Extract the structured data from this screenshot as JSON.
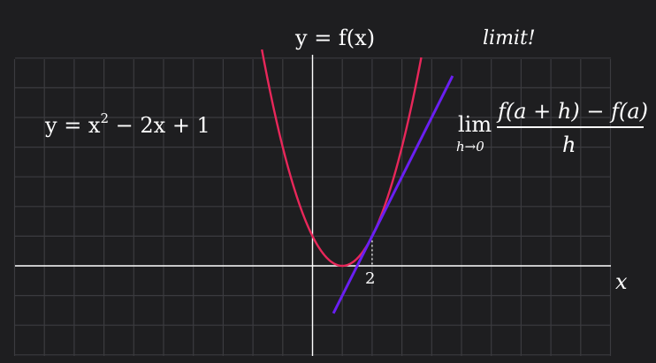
{
  "diagram": {
    "title": "y = f(x)",
    "caption": "limit!",
    "equation": {
      "lhs": "y = x",
      "exponent": "2",
      "rhs": " − 2x + 1"
    },
    "x_axis_label": "x",
    "tick_label": "2",
    "derivative": {
      "lim": "lim",
      "subscript": "h→0",
      "numerator": "f(a + h) − f(a)",
      "denominator": "h"
    }
  },
  "chart_data": {
    "type": "line",
    "xlim": [
      -10,
      10
    ],
    "ylim": [
      -3,
      7
    ],
    "grid": true,
    "series": [
      {
        "name": "parabola",
        "expression": "y = x^2 - 2x + 1",
        "color": "#e8275a",
        "x_range": [
          -1.7,
          3.65
        ]
      },
      {
        "name": "tangent",
        "expression": "y = 2x - 3",
        "color": "#6a1ff2",
        "x_range": [
          0.7,
          4.7
        ]
      }
    ],
    "point_of_tangency": {
      "x": 2,
      "y": 1
    },
    "tick": {
      "x": 2,
      "label": "2"
    }
  },
  "colors": {
    "background": "#1e1e20",
    "grid": "#3b3b3f",
    "axis": "#ffffff",
    "curve": "#e8275a",
    "tangent": "#6a1ff2"
  }
}
